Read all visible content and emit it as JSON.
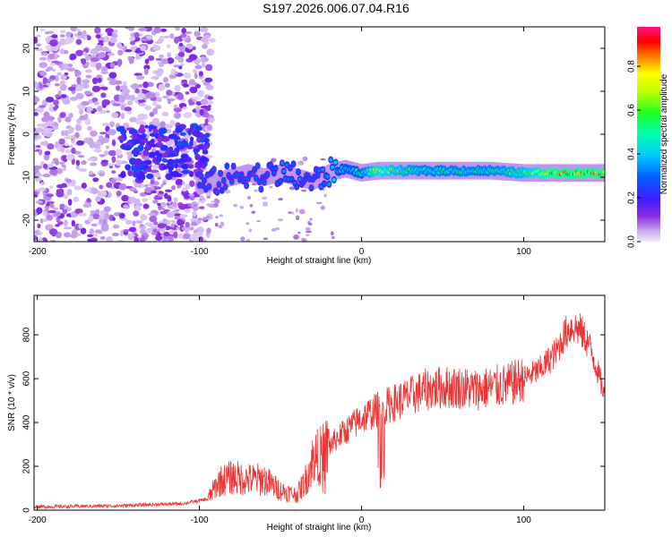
{
  "title": "S197.2026.006.07.04.R16",
  "chart_data": [
    {
      "type": "heatmap",
      "xlabel": "Height of straight line (km)",
      "ylabel": "Frequency (Hz)",
      "xlim": [
        -202,
        150
      ],
      "ylim": [
        -25,
        25
      ],
      "xticks": [
        -200,
        -100,
        0,
        100
      ],
      "yticks": [
        -20,
        -10,
        0,
        10,
        20
      ],
      "colorbar": {
        "label": "Normalized spectral amplitude",
        "range": [
          0,
          0.98
        ],
        "ticks": [
          0.0,
          0.2,
          0.4,
          0.6,
          0.8
        ]
      },
      "ridge": {
        "description_free": true,
        "x": [
          -100,
          -90,
          -80,
          -70,
          -60,
          -50,
          -40,
          -30,
          -20,
          -10,
          0,
          10,
          20,
          40,
          60,
          80,
          100,
          120,
          150
        ],
        "freq": [
          -12,
          -11,
          -10,
          -9,
          -10,
          -9,
          -10,
          -11,
          -9,
          -8,
          -9,
          -8.5,
          -8.5,
          -8.5,
          -8.5,
          -8.5,
          -9,
          -9,
          -9
        ],
        "amp": [
          0.3,
          0.3,
          0.3,
          0.3,
          0.3,
          0.35,
          0.35,
          0.3,
          0.4,
          0.5,
          0.55,
          0.8,
          0.7,
          0.6,
          0.6,
          0.6,
          0.7,
          0.95,
          0.95
        ]
      }
    },
    {
      "type": "line",
      "xlabel": "Height of straight line (km)",
      "ylabel": "SNR (10 * v/v)",
      "xlim": [
        -202,
        150
      ],
      "ylim": [
        0,
        980
      ],
      "xticks": [
        -200,
        -100,
        0,
        100
      ],
      "yticks": [
        0,
        200,
        400,
        600,
        800
      ],
      "color": "#ee3333",
      "envelope_x": [
        -202,
        -150,
        -110,
        -95,
        -88,
        -80,
        -70,
        -60,
        -50,
        -45,
        -40,
        -35,
        -30,
        -25,
        -20,
        -15,
        -10,
        -5,
        0,
        10,
        20,
        30,
        40,
        50,
        60,
        70,
        80,
        90,
        100,
        110,
        120,
        125,
        130,
        135,
        140,
        145,
        150
      ],
      "envelope_y": [
        15,
        20,
        30,
        50,
        130,
        150,
        140,
        140,
        90,
        80,
        70,
        130,
        230,
        250,
        290,
        330,
        360,
        390,
        420,
        460,
        490,
        520,
        550,
        560,
        560,
        550,
        560,
        570,
        600,
        640,
        720,
        800,
        840,
        820,
        760,
        650,
        520
      ]
    }
  ]
}
